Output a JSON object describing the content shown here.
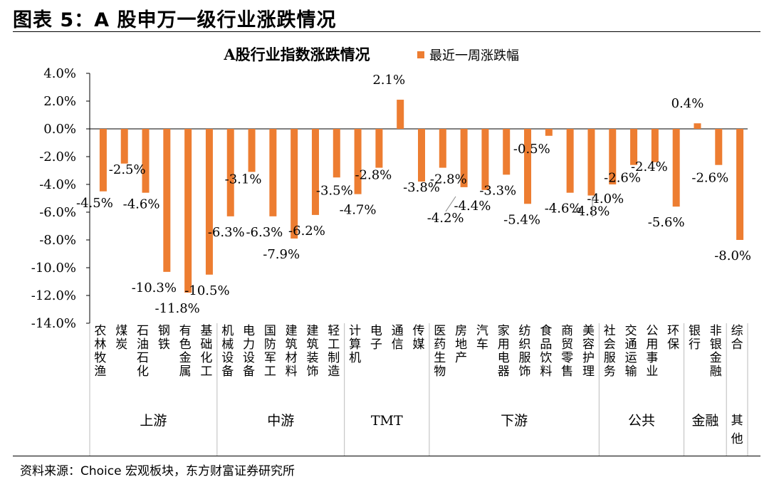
{
  "figure_title": "图表 5：A 股申万一级行业涨跌情况",
  "source_note": "资料来源：Choice 宏观板块，东方财富证券研究所",
  "colors": {
    "bar": "#ED7D31",
    "axis": "#000000",
    "leader": "#888888"
  },
  "chart_data": {
    "type": "bar",
    "title": "A股行业指数涨跌情况",
    "legend": {
      "label": "最近一周涨跌幅",
      "position": "top-right"
    },
    "ylim": [
      -14.0,
      4.0
    ],
    "yticks": [
      4.0,
      2.0,
      0.0,
      -2.0,
      -4.0,
      -6.0,
      -8.0,
      -10.0,
      -12.0,
      -14.0
    ],
    "ytick_labels": [
      "4.0%",
      "2.0%",
      "0.0%",
      "-2.0%",
      "-4.0%",
      "-6.0%",
      "-8.0%",
      "-10.0%",
      "-12.0%",
      "-14.0%"
    ],
    "grid": false,
    "categories": [
      "农林牧渔",
      "煤炭",
      "石油石化",
      "钢铁",
      "有色金属",
      "基础化工",
      "机械设备",
      "电力设备",
      "国防军工",
      "建筑材料",
      "建筑装饰",
      "轻工制造",
      "计算机",
      "电子",
      "通信",
      "传媒",
      "医药生物",
      "房地产",
      "汽车",
      "家用电器",
      "纺织服饰",
      "食品饮料",
      "商贸零售",
      "美容护理",
      "社会服务",
      "交通运输",
      "公用事业",
      "环保",
      "银行",
      "非银金融",
      "综合"
    ],
    "values": [
      -4.5,
      -2.5,
      -4.6,
      -10.3,
      -11.8,
      -10.5,
      -6.3,
      -3.1,
      -6.3,
      -7.9,
      -6.2,
      -3.5,
      -4.7,
      -2.8,
      2.1,
      -3.8,
      -2.8,
      -4.2,
      -4.4,
      -3.3,
      -5.4,
      -0.5,
      -4.6,
      -4.8,
      -4.0,
      -2.6,
      -2.4,
      -5.6,
      0.4,
      -2.6,
      -8.0
    ],
    "data_labels": [
      "-4.5%",
      "-2.5%",
      "-4.6%",
      "-10.3%",
      "-11.8%",
      "-10.5%",
      "-6.3%",
      "-3.1%",
      "-6.3%",
      "-7.9%",
      "-6.2%",
      "-3.5%",
      "-4.7%",
      "-2.8%",
      "2.1%",
      "-3.8%",
      "-2.8%",
      "-4.2%",
      "-4.4%",
      "-3.3%",
      "-5.4%",
      "-0.5%",
      "-4.6%",
      "-4.8%",
      "-4.0%",
      "-2.6%",
      "-2.4%",
      "-5.6%",
      "0.4%",
      "-2.6%",
      "-8.0%"
    ],
    "groups": [
      {
        "label": "上游",
        "count": 6
      },
      {
        "label": "中游",
        "count": 6
      },
      {
        "label": "TMT",
        "count": 4
      },
      {
        "label": "下游",
        "count": 8
      },
      {
        "label": "公共",
        "count": 4
      },
      {
        "label": "金融",
        "count": 2
      },
      {
        "label": "其他",
        "count": 1
      }
    ]
  }
}
